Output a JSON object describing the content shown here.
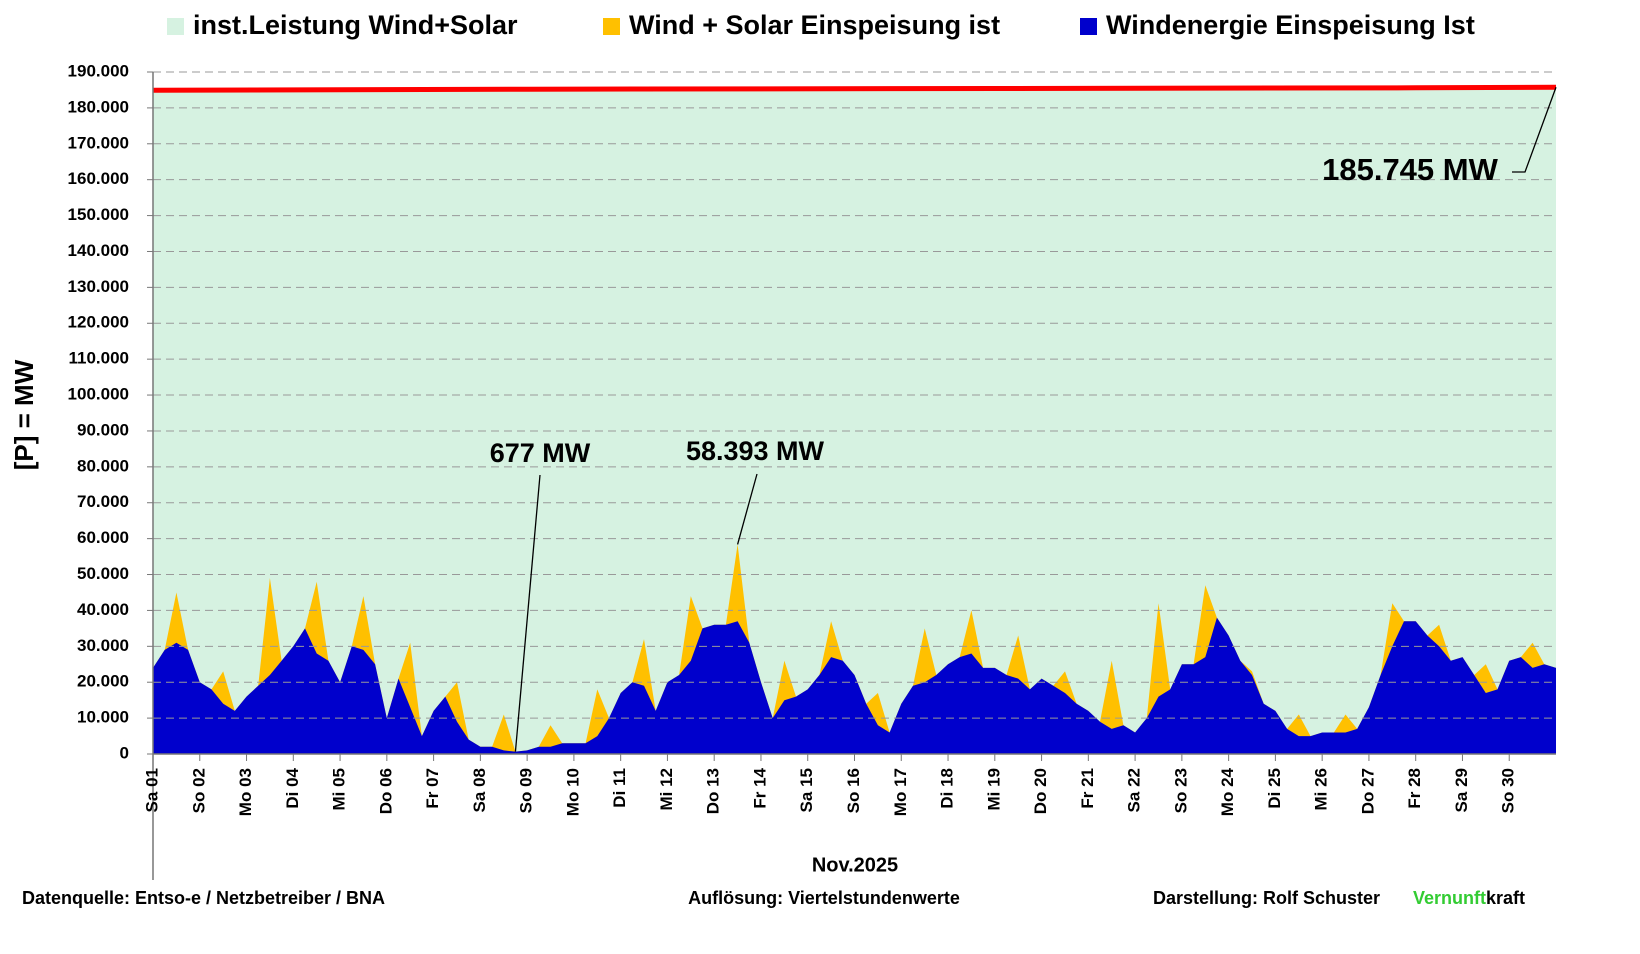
{
  "chart_data": {
    "type": "area",
    "ylabel": "[P] =   MW",
    "xlabel": "Nov.2025",
    "legend": "top",
    "grid": true,
    "xlim": [
      1,
      31
    ],
    "ylim": [
      0,
      190000
    ],
    "yticks": [
      0,
      {
        "value": 10000,
        "label": "10.000"
      },
      {
        "value": 20000,
        "label": "20.000"
      },
      {
        "value": 30000,
        "label": "30.000"
      },
      {
        "value": 40000,
        "label": "40.000"
      },
      {
        "value": 50000,
        "label": "50.000"
      },
      {
        "value": 60000,
        "label": "60.000"
      },
      {
        "value": 70000,
        "label": "70.000"
      },
      {
        "value": 80000,
        "label": "80.000"
      },
      {
        "value": 90000,
        "label": "90.000"
      },
      {
        "value": 100000,
        "label": "100.000"
      },
      {
        "value": 110000,
        "label": "110.000"
      },
      {
        "value": 120000,
        "label": "120.000"
      },
      {
        "value": 130000,
        "label": "130.000"
      },
      {
        "value": 140000,
        "label": "140.000"
      },
      {
        "value": 150000,
        "label": "150.000"
      },
      {
        "value": 160000,
        "label": "160.000"
      },
      {
        "value": 170000,
        "label": "170.000"
      },
      {
        "value": 180000,
        "label": "180.000"
      },
      {
        "value": 190000,
        "label": "190.000"
      }
    ],
    "xticks": [
      {
        "value": 1,
        "label": "Sa 01"
      },
      {
        "value": 2,
        "label": "So 02"
      },
      {
        "value": 3,
        "label": "Mo 03"
      },
      {
        "value": 4,
        "label": "Di 04"
      },
      {
        "value": 5,
        "label": "Mi 05"
      },
      {
        "value": 6,
        "label": "Do 06"
      },
      {
        "value": 7,
        "label": "Fr 07"
      },
      {
        "value": 8,
        "label": "Sa 08"
      },
      {
        "value": 9,
        "label": "So 09"
      },
      {
        "value": 10,
        "label": "Mo 10"
      },
      {
        "value": 11,
        "label": "Di 11"
      },
      {
        "value": 12,
        "label": "Mi 12"
      },
      {
        "value": 13,
        "label": "Do 13"
      },
      {
        "value": 14,
        "label": "Fr 14"
      },
      {
        "value": 15,
        "label": "Sa 15"
      },
      {
        "value": 16,
        "label": "So 16"
      },
      {
        "value": 17,
        "label": "Mo 17"
      },
      {
        "value": 18,
        "label": "Di 18"
      },
      {
        "value": 19,
        "label": "Mi 19"
      },
      {
        "value": 20,
        "label": "Do 20"
      },
      {
        "value": 21,
        "label": "Fr 21"
      },
      {
        "value": 22,
        "label": "Sa 22"
      },
      {
        "value": 23,
        "label": "So 23"
      },
      {
        "value": 24,
        "label": "Mo 24"
      },
      {
        "value": 25,
        "label": "Di 25"
      },
      {
        "value": 26,
        "label": "Mi 26"
      },
      {
        "value": 27,
        "label": "Do 27"
      },
      {
        "value": 28,
        "label": "Fr 28"
      },
      {
        "value": 29,
        "label": "Sa 29"
      },
      {
        "value": 30,
        "label": "So 30"
      }
    ],
    "x": [
      1,
      1.25,
      1.5,
      1.75,
      2,
      2.25,
      2.5,
      2.75,
      3,
      3.25,
      3.5,
      3.75,
      4,
      4.25,
      4.5,
      4.75,
      5,
      5.25,
      5.5,
      5.75,
      6,
      6.25,
      6.5,
      6.75,
      7,
      7.25,
      7.5,
      7.75,
      8,
      8.25,
      8.5,
      8.75,
      9,
      9.25,
      9.5,
      9.75,
      10,
      10.25,
      10.5,
      10.75,
      11,
      11.25,
      11.5,
      11.75,
      12,
      12.25,
      12.5,
      12.75,
      13,
      13.25,
      13.5,
      13.75,
      14,
      14.25,
      14.5,
      14.75,
      15,
      15.25,
      15.5,
      15.75,
      16,
      16.25,
      16.5,
      16.75,
      17,
      17.25,
      17.5,
      17.75,
      18,
      18.25,
      18.5,
      18.75,
      19,
      19.25,
      19.5,
      19.75,
      20,
      20.25,
      20.5,
      20.75,
      21,
      21.25,
      21.5,
      21.75,
      22,
      22.25,
      22.5,
      22.75,
      23,
      23.25,
      23.5,
      23.75,
      24,
      24.25,
      24.5,
      24.75,
      25,
      25.25,
      25.5,
      25.75,
      26,
      26.25,
      26.5,
      26.75,
      27,
      27.25,
      27.5,
      27.75,
      28,
      28.25,
      28.5,
      28.75,
      29,
      29.25,
      29.5,
      29.75,
      30,
      30.25,
      30.5,
      30.75,
      31
    ],
    "series": [
      {
        "name": "inst.Leistung Wind+Solar",
        "color": "#d6f2e1",
        "line_color": "#ff0000",
        "x": [
          1,
          9,
          19,
          28,
          31
        ],
        "values": [
          184900,
          185200,
          185400,
          185600,
          185745
        ]
      },
      {
        "name": "Wind + Solar Einspeisung ist",
        "color": "#ffc000",
        "values": [
          24000,
          29000,
          45000,
          29000,
          20000,
          18000,
          23000,
          12000,
          16000,
          19000,
          49000,
          26000,
          30000,
          35000,
          48000,
          26000,
          20000,
          30000,
          44000,
          25000,
          10000,
          21000,
          31000,
          5000,
          12000,
          16000,
          20000,
          4000,
          2000,
          2000,
          11000,
          677,
          1000,
          2000,
          8000,
          3000,
          3000,
          3000,
          18000,
          10000,
          17000,
          20000,
          32000,
          12000,
          20000,
          22000,
          44000,
          35000,
          36000,
          36000,
          58393,
          31000,
          20000,
          10000,
          26000,
          16000,
          18000,
          22000,
          37000,
          26000,
          22000,
          14000,
          17000,
          6000,
          14000,
          19000,
          35000,
          22000,
          25000,
          27000,
          40000,
          24000,
          24000,
          22000,
          33000,
          18000,
          21000,
          19000,
          23000,
          14000,
          12000,
          9000,
          26000,
          8000,
          6000,
          10000,
          42000,
          18000,
          25000,
          25000,
          47000,
          38000,
          33000,
          26000,
          23000,
          14000,
          12000,
          7000,
          11000,
          5000,
          6000,
          6000,
          11000,
          7000,
          13000,
          22000,
          42000,
          37000,
          37000,
          33000,
          36000,
          26000,
          27000,
          22000,
          25000,
          18000,
          26000,
          27000,
          31000,
          25000,
          24000
        ]
      },
      {
        "name": "Windenergie Einspeisung Ist",
        "color": "#0000cc",
        "values": [
          24000,
          29000,
          31000,
          29000,
          20000,
          18000,
          14000,
          12000,
          16000,
          19000,
          22000,
          26000,
          30000,
          35000,
          28000,
          26000,
          20000,
          30000,
          29000,
          25000,
          10000,
          21000,
          13000,
          5000,
          12000,
          16000,
          9000,
          4000,
          2000,
          2000,
          1000,
          677,
          1000,
          2000,
          2000,
          3000,
          3000,
          3000,
          5000,
          10000,
          17000,
          20000,
          19000,
          12000,
          20000,
          22000,
          26000,
          35000,
          36000,
          36000,
          37000,
          31000,
          20000,
          10000,
          15000,
          16000,
          18000,
          22000,
          27000,
          26000,
          22000,
          14000,
          8000,
          6000,
          14000,
          19000,
          20000,
          22000,
          25000,
          27000,
          28000,
          24000,
          24000,
          22000,
          21000,
          18000,
          21000,
          19000,
          17000,
          14000,
          12000,
          9000,
          7000,
          8000,
          6000,
          10000,
          16000,
          18000,
          25000,
          25000,
          27000,
          38000,
          33000,
          26000,
          22000,
          14000,
          12000,
          7000,
          5000,
          5000,
          6000,
          6000,
          6000,
          7000,
          13000,
          22000,
          30000,
          37000,
          37000,
          33000,
          30000,
          26000,
          27000,
          22000,
          17000,
          18000,
          26000,
          27000,
          24000,
          25000,
          24000
        ]
      }
    ],
    "annotations": [
      {
        "text": "677 MW",
        "x": 8.75,
        "y": 677
      },
      {
        "text": "58.393 MW",
        "x": 13.5,
        "y": 58393
      },
      {
        "text": "185.745 MW",
        "x": 31,
        "y": 185745
      }
    ]
  },
  "footer": {
    "source": "Datenquelle:  Entso-e  / Netzbetreiber / BNA",
    "resolution": "Auflösung: Viertelstundenwerte",
    "author": "Darstellung:  Rolf Schuster",
    "brand": [
      "Vernunft",
      "kraft"
    ]
  }
}
